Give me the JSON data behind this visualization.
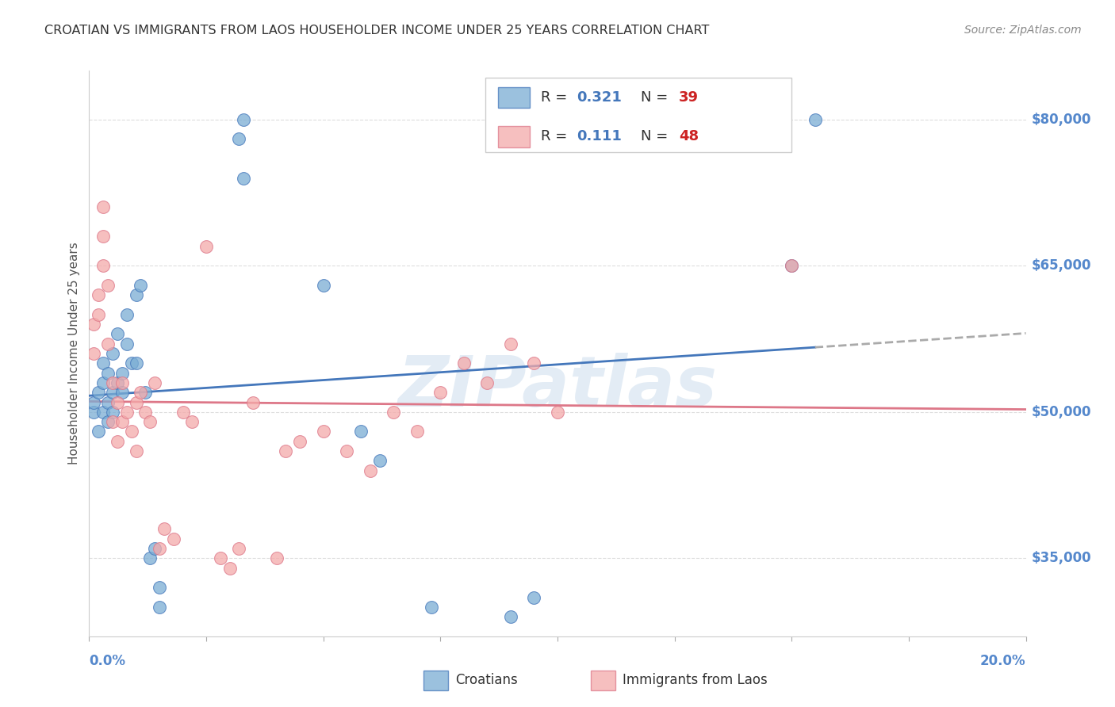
{
  "title": "CROATIAN VS IMMIGRANTS FROM LAOS HOUSEHOLDER INCOME UNDER 25 YEARS CORRELATION CHART",
  "source": "Source: ZipAtlas.com",
  "ylabel": "Householder Income Under 25 years",
  "legend_r1": "R = 0.321",
  "legend_n1": "N = 39",
  "legend_r2": "R =  0.111",
  "legend_n2": "N = 48",
  "xlim": [
    0.0,
    0.2
  ],
  "ylim": [
    27000,
    85000
  ],
  "yticks": [
    35000,
    50000,
    65000,
    80000
  ],
  "ytick_labels": [
    "$35,000",
    "$50,000",
    "$65,000",
    "$80,000"
  ],
  "watermark": "ZIPatlas",
  "blue_color": "#7aadd4",
  "pink_color": "#f4aaaa",
  "blue_line_color": "#4477bb",
  "pink_line_color": "#dd7788",
  "blue_text_color": "#4477bb",
  "red_text_color": "#cc2222",
  "title_color": "#333333",
  "axis_label_color": "#5588cc",
  "croatians_x": [
    0.001,
    0.001,
    0.002,
    0.002,
    0.003,
    0.003,
    0.003,
    0.004,
    0.004,
    0.004,
    0.005,
    0.005,
    0.005,
    0.006,
    0.006,
    0.007,
    0.007,
    0.008,
    0.008,
    0.009,
    0.01,
    0.01,
    0.011,
    0.012,
    0.013,
    0.014,
    0.015,
    0.015,
    0.032,
    0.033,
    0.033,
    0.05,
    0.058,
    0.062,
    0.073,
    0.09,
    0.095,
    0.15,
    0.155
  ],
  "croatians_y": [
    50000,
    51000,
    52000,
    48000,
    53000,
    50000,
    55000,
    49000,
    51000,
    54000,
    52000,
    56000,
    50000,
    53000,
    58000,
    54000,
    52000,
    57000,
    60000,
    55000,
    62000,
    55000,
    63000,
    52000,
    35000,
    36000,
    30000,
    32000,
    78000,
    80000,
    74000,
    63000,
    48000,
    45000,
    30000,
    29000,
    31000,
    65000,
    80000
  ],
  "laos_x": [
    0.001,
    0.001,
    0.002,
    0.002,
    0.003,
    0.003,
    0.003,
    0.004,
    0.004,
    0.005,
    0.005,
    0.006,
    0.006,
    0.007,
    0.007,
    0.008,
    0.009,
    0.01,
    0.01,
    0.011,
    0.012,
    0.013,
    0.014,
    0.015,
    0.016,
    0.018,
    0.02,
    0.022,
    0.025,
    0.028,
    0.03,
    0.032,
    0.035,
    0.04,
    0.042,
    0.045,
    0.05,
    0.055,
    0.06,
    0.065,
    0.07,
    0.075,
    0.08,
    0.085,
    0.09,
    0.095,
    0.1,
    0.15
  ],
  "laos_y": [
    59000,
    56000,
    62000,
    60000,
    71000,
    68000,
    65000,
    63000,
    57000,
    49000,
    53000,
    47000,
    51000,
    49000,
    53000,
    50000,
    48000,
    51000,
    46000,
    52000,
    50000,
    49000,
    53000,
    36000,
    38000,
    37000,
    50000,
    49000,
    67000,
    35000,
    34000,
    36000,
    51000,
    35000,
    46000,
    47000,
    48000,
    46000,
    44000,
    50000,
    48000,
    52000,
    55000,
    53000,
    57000,
    55000,
    50000,
    65000
  ]
}
